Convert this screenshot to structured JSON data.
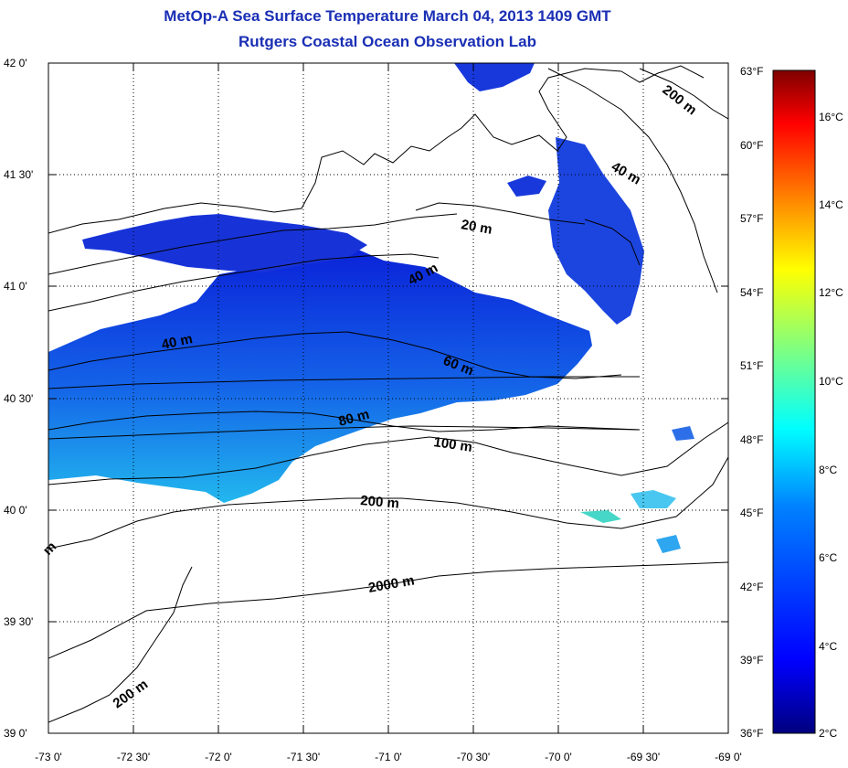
{
  "title": "MetOp-A Sea Surface Temperature March 04, 2013 1409 GMT",
  "subtitle": "Rutgers Coastal Ocean Observation Lab",
  "axes": {
    "lon_ticks": [
      "-73 0'",
      "-72 30'",
      "-72 0'",
      "-71 30'",
      "-71 0'",
      "-70 30'",
      "-70 0'",
      "-69 30'",
      "-69 0'"
    ],
    "lat_ticks": [
      "42 0'",
      "41 30'",
      "41 0'",
      "40 30'",
      "40 0'",
      "39 30'",
      "39 0'"
    ],
    "lon_range": [
      -73,
      -69
    ],
    "lat_range": [
      39,
      42
    ],
    "grid": "dotted"
  },
  "contour_labels": [
    "200 m",
    "40 m",
    "20 m",
    "40 m",
    "40 m",
    "60 m",
    "80 m",
    "100 m",
    "200 m",
    "2000 m",
    "200 m",
    "m"
  ],
  "colorbar": {
    "fahrenheit": [
      "63°F",
      "60°F",
      "57°F",
      "54°F",
      "51°F",
      "48°F",
      "45°F",
      "42°F",
      "39°F",
      "36°F"
    ],
    "celsius": [
      "16°C",
      "14°C",
      "12°C",
      "10°C",
      "8°C",
      "6°C",
      "4°C",
      "2°C"
    ],
    "colors": [
      "#00007f",
      "#0000ff",
      "#0080ff",
      "#00ffff",
      "#80ff80",
      "#ffff00",
      "#ff8000",
      "#ff0000",
      "#7f0000"
    ]
  }
}
